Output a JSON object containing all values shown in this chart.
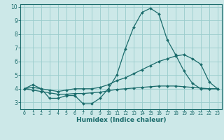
{
  "xlabel": "Humidex (Indice chaleur)",
  "bg_color": "#cce8e8",
  "grid_color": "#99cccc",
  "line_color": "#1a6b6b",
  "xlim": [
    -0.5,
    23.5
  ],
  "ylim": [
    2.5,
    10.2
  ],
  "yticks": [
    3,
    4,
    5,
    6,
    7,
    8,
    9,
    10
  ],
  "xticks": [
    0,
    1,
    2,
    3,
    4,
    5,
    6,
    7,
    8,
    9,
    10,
    11,
    12,
    13,
    14,
    15,
    16,
    17,
    18,
    19,
    20,
    21,
    22,
    23
  ],
  "series": [
    {
      "x": [
        0,
        1,
        2,
        3,
        4,
        5,
        6,
        7,
        8,
        9,
        10,
        11,
        12,
        13,
        14,
        15,
        16,
        17,
        18,
        19,
        20,
        21,
        22,
        23
      ],
      "y": [
        4.0,
        4.3,
        4.0,
        3.3,
        3.3,
        3.5,
        3.5,
        2.9,
        2.9,
        3.3,
        4.0,
        5.0,
        6.9,
        8.5,
        9.6,
        9.9,
        9.5,
        7.6,
        6.5,
        5.3,
        4.4,
        4.0,
        4.0,
        4.0
      ]
    },
    {
      "x": [
        0,
        1,
        2,
        3,
        4,
        5,
        6,
        7,
        8,
        9,
        10,
        11,
        12,
        13,
        14,
        15,
        16,
        17,
        18,
        19,
        20,
        21,
        22,
        23
      ],
      "y": [
        4.0,
        4.1,
        4.0,
        3.9,
        3.8,
        3.9,
        4.0,
        4.0,
        4.0,
        4.1,
        4.3,
        4.6,
        4.8,
        5.1,
        5.4,
        5.7,
        6.0,
        6.2,
        6.4,
        6.5,
        6.2,
        5.8,
        4.5,
        4.0
      ]
    },
    {
      "x": [
        0,
        1,
        2,
        3,
        4,
        5,
        6,
        7,
        8,
        9,
        10,
        11,
        12,
        13,
        14,
        15,
        16,
        17,
        18,
        19,
        20,
        21,
        22,
        23
      ],
      "y": [
        4.0,
        3.9,
        3.8,
        3.7,
        3.6,
        3.6,
        3.65,
        3.65,
        3.7,
        3.75,
        3.85,
        3.95,
        4.0,
        4.05,
        4.1,
        4.15,
        4.2,
        4.2,
        4.2,
        4.15,
        4.1,
        4.05,
        4.0,
        4.0
      ]
    }
  ]
}
